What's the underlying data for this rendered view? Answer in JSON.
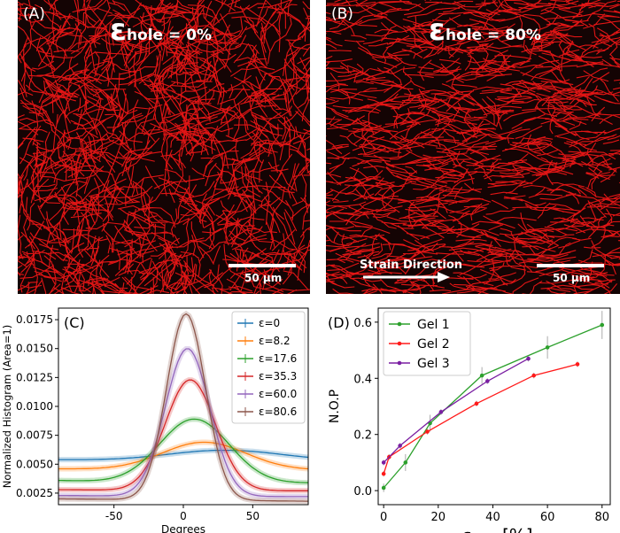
{
  "panel_a": {
    "label": "(A)",
    "eps_symbol": "ε",
    "eps_sub": "hole",
    "eps_value": " = 0%",
    "scale_text": "50 μm"
  },
  "panel_b": {
    "label": "(B)",
    "eps_symbol": "ε",
    "eps_sub": "hole",
    "eps_value": " = 80%",
    "scale_text": "50 μm",
    "strain_text": "Strain Direction"
  },
  "colors": {
    "fiber": "#e01515",
    "background": "#140404"
  },
  "chart_data": [
    {
      "type": "line",
      "panel_label": "(C)",
      "xlabel": "Degrees",
      "ylabel": "Normalized Histogram (Area=1)",
      "xlim": [
        -90,
        90
      ],
      "ylim": [
        0.0015,
        0.0185
      ],
      "x_ticks": [
        -50,
        0,
        50
      ],
      "y_ticks": [
        "0.0025",
        "0.0050",
        "0.0075",
        "0.0100",
        "0.0125",
        "0.0150",
        "0.0175"
      ],
      "legend_location": "top-right",
      "series": [
        {
          "name": "ε=0",
          "color": "#1f77b4",
          "peak": 0.0062,
          "base": 0.0052,
          "center": 30,
          "sigma": 40,
          "start": 0.0054,
          "end": 0.0056
        },
        {
          "name": "ε=8.2",
          "color": "#ff7f0e",
          "peak": 0.0069,
          "base": 0.0045,
          "center": 15,
          "sigma": 30,
          "start": 0.0046,
          "end": 0.0046
        },
        {
          "name": "ε=17.6",
          "color": "#2ca02c",
          "peak": 0.0089,
          "base": 0.0033,
          "center": 8,
          "sigma": 25,
          "start": 0.0036,
          "end": 0.0034
        },
        {
          "name": "ε=35.3",
          "color": "#d62728",
          "peak": 0.0123,
          "base": 0.0027,
          "center": 5,
          "sigma": 18,
          "start": 0.0028,
          "end": 0.0027
        },
        {
          "name": "ε=60.0",
          "color": "#9467bd",
          "peak": 0.015,
          "base": 0.0022,
          "center": 3,
          "sigma": 16,
          "start": 0.0023,
          "end": 0.0022
        },
        {
          "name": "ε=80.6",
          "color": "#8c564b",
          "peak": 0.018,
          "base": 0.0019,
          "center": 2,
          "sigma": 14,
          "start": 0.002,
          "end": 0.0018
        }
      ]
    },
    {
      "type": "line",
      "panel_label": "(D)",
      "ylabel": "N.O.P",
      "xlabel_symbol": "ε",
      "xlabel_sub": "hole",
      "xlabel_unit": " [%]",
      "xlim": [
        -2,
        83
      ],
      "ylim": [
        -0.05,
        0.65
      ],
      "x_ticks": [
        0,
        20,
        40,
        60,
        80
      ],
      "y_ticks": [
        "0.0",
        "0.2",
        "0.4",
        "0.6"
      ],
      "legend_location": "top-left",
      "series": [
        {
          "name": "Gel 1",
          "color": "#2ca02c",
          "x": [
            0,
            8,
            17,
            36,
            60,
            80
          ],
          "y": [
            0.01,
            0.1,
            0.24,
            0.41,
            0.51,
            0.59
          ],
          "err": [
            0.015,
            0.03,
            0.03,
            0.03,
            0.04,
            0.05
          ]
        },
        {
          "name": "Gel 2",
          "color": "#ff1a1a",
          "x": [
            0,
            2,
            16,
            34,
            55,
            71
          ],
          "y": [
            0.06,
            0.12,
            0.21,
            0.31,
            0.41,
            0.45
          ],
          "err": [
            0.01,
            0.01,
            0.01,
            0.01,
            0.01,
            0.01
          ]
        },
        {
          "name": "Gel 3",
          "color": "#7a1fa2",
          "x": [
            0,
            6,
            21,
            38,
            53
          ],
          "y": [
            0.1,
            0.16,
            0.28,
            0.39,
            0.47
          ],
          "err": [
            0.01,
            0.01,
            0.01,
            0.01,
            0.01
          ]
        }
      ]
    }
  ]
}
